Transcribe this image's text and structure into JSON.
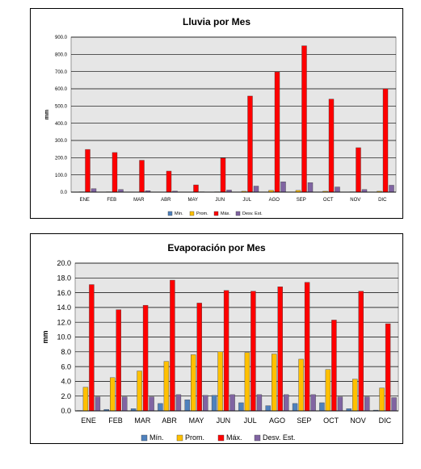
{
  "colors": {
    "min": "#4f81bd",
    "prom": "#ffc000",
    "max": "#ff0000",
    "desv": "#8064a2",
    "plot_bg": "#e6e6e6",
    "grid": "#000000"
  },
  "legend_labels": [
    "Mín.",
    "Prom.",
    "Máx.",
    "Desv. Est."
  ],
  "chart_data": [
    {
      "type": "bar",
      "title": "Lluvia por Mes",
      "ylabel": "mm",
      "xlabel": "",
      "ylim": [
        0,
        900
      ],
      "yticks": [
        "0.0",
        "100.0",
        "200.0",
        "300.0",
        "400.0",
        "500.0",
        "600.0",
        "700.0",
        "800.0",
        "900.0"
      ],
      "categories": [
        "ENE",
        "FEB",
        "MAR",
        "ABR",
        "MAY",
        "JUN",
        "JUL",
        "AGO",
        "SEP",
        "OCT",
        "NOV",
        "DIC"
      ],
      "grid": true,
      "legend": "bottom",
      "series": [
        {
          "name": "Mín.",
          "values": [
            0,
            0,
            0,
            0,
            0,
            0,
            0,
            0,
            0,
            0,
            0,
            0
          ]
        },
        {
          "name": "Prom.",
          "values": [
            2,
            2,
            1,
            1,
            0,
            2,
            5,
            10,
            10,
            5,
            2,
            5
          ]
        },
        {
          "name": "Máx.",
          "values": [
            248,
            230,
            185,
            122,
            42,
            198,
            558,
            698,
            850,
            540,
            258,
            600
          ]
        },
        {
          "name": "Desv. Est.",
          "values": [
            20,
            15,
            8,
            6,
            2,
            12,
            35,
            60,
            55,
            30,
            15,
            40
          ]
        }
      ]
    },
    {
      "type": "bar",
      "title": "Evaporación por Mes",
      "ylabel": "mm",
      "xlabel": "",
      "ylim": [
        0,
        20
      ],
      "yticks": [
        "0.0",
        "2.0",
        "4.0",
        "6.0",
        "8.0",
        "10.0",
        "12.0",
        "14.0",
        "16.0",
        "18.0",
        "20.0"
      ],
      "categories": [
        "ENE",
        "FEB",
        "MAR",
        "ABR",
        "MAY",
        "JUN",
        "JUL",
        "AGO",
        "SEP",
        "OCT",
        "NOV",
        "DIC"
      ],
      "grid": true,
      "legend": "bottom",
      "series": [
        {
          "name": "Mín.",
          "values": [
            0.05,
            0.2,
            0.3,
            1.0,
            1.5,
            2.1,
            1.1,
            0.7,
            1.0,
            1.1,
            0.3,
            0.1
          ]
        },
        {
          "name": "Prom.",
          "values": [
            3.2,
            4.5,
            5.4,
            6.7,
            7.6,
            8.0,
            7.9,
            7.7,
            7.0,
            5.6,
            4.3,
            3.1
          ]
        },
        {
          "name": "Máx.",
          "values": [
            17.1,
            13.7,
            14.3,
            17.7,
            14.6,
            16.3,
            16.2,
            16.8,
            17.4,
            12.3,
            16.2,
            11.8
          ]
        },
        {
          "name": "Desv. Est.",
          "values": [
            1.9,
            1.9,
            1.9,
            2.2,
            2.1,
            2.2,
            2.2,
            2.2,
            2.2,
            1.9,
            1.9,
            1.8
          ]
        }
      ]
    }
  ]
}
